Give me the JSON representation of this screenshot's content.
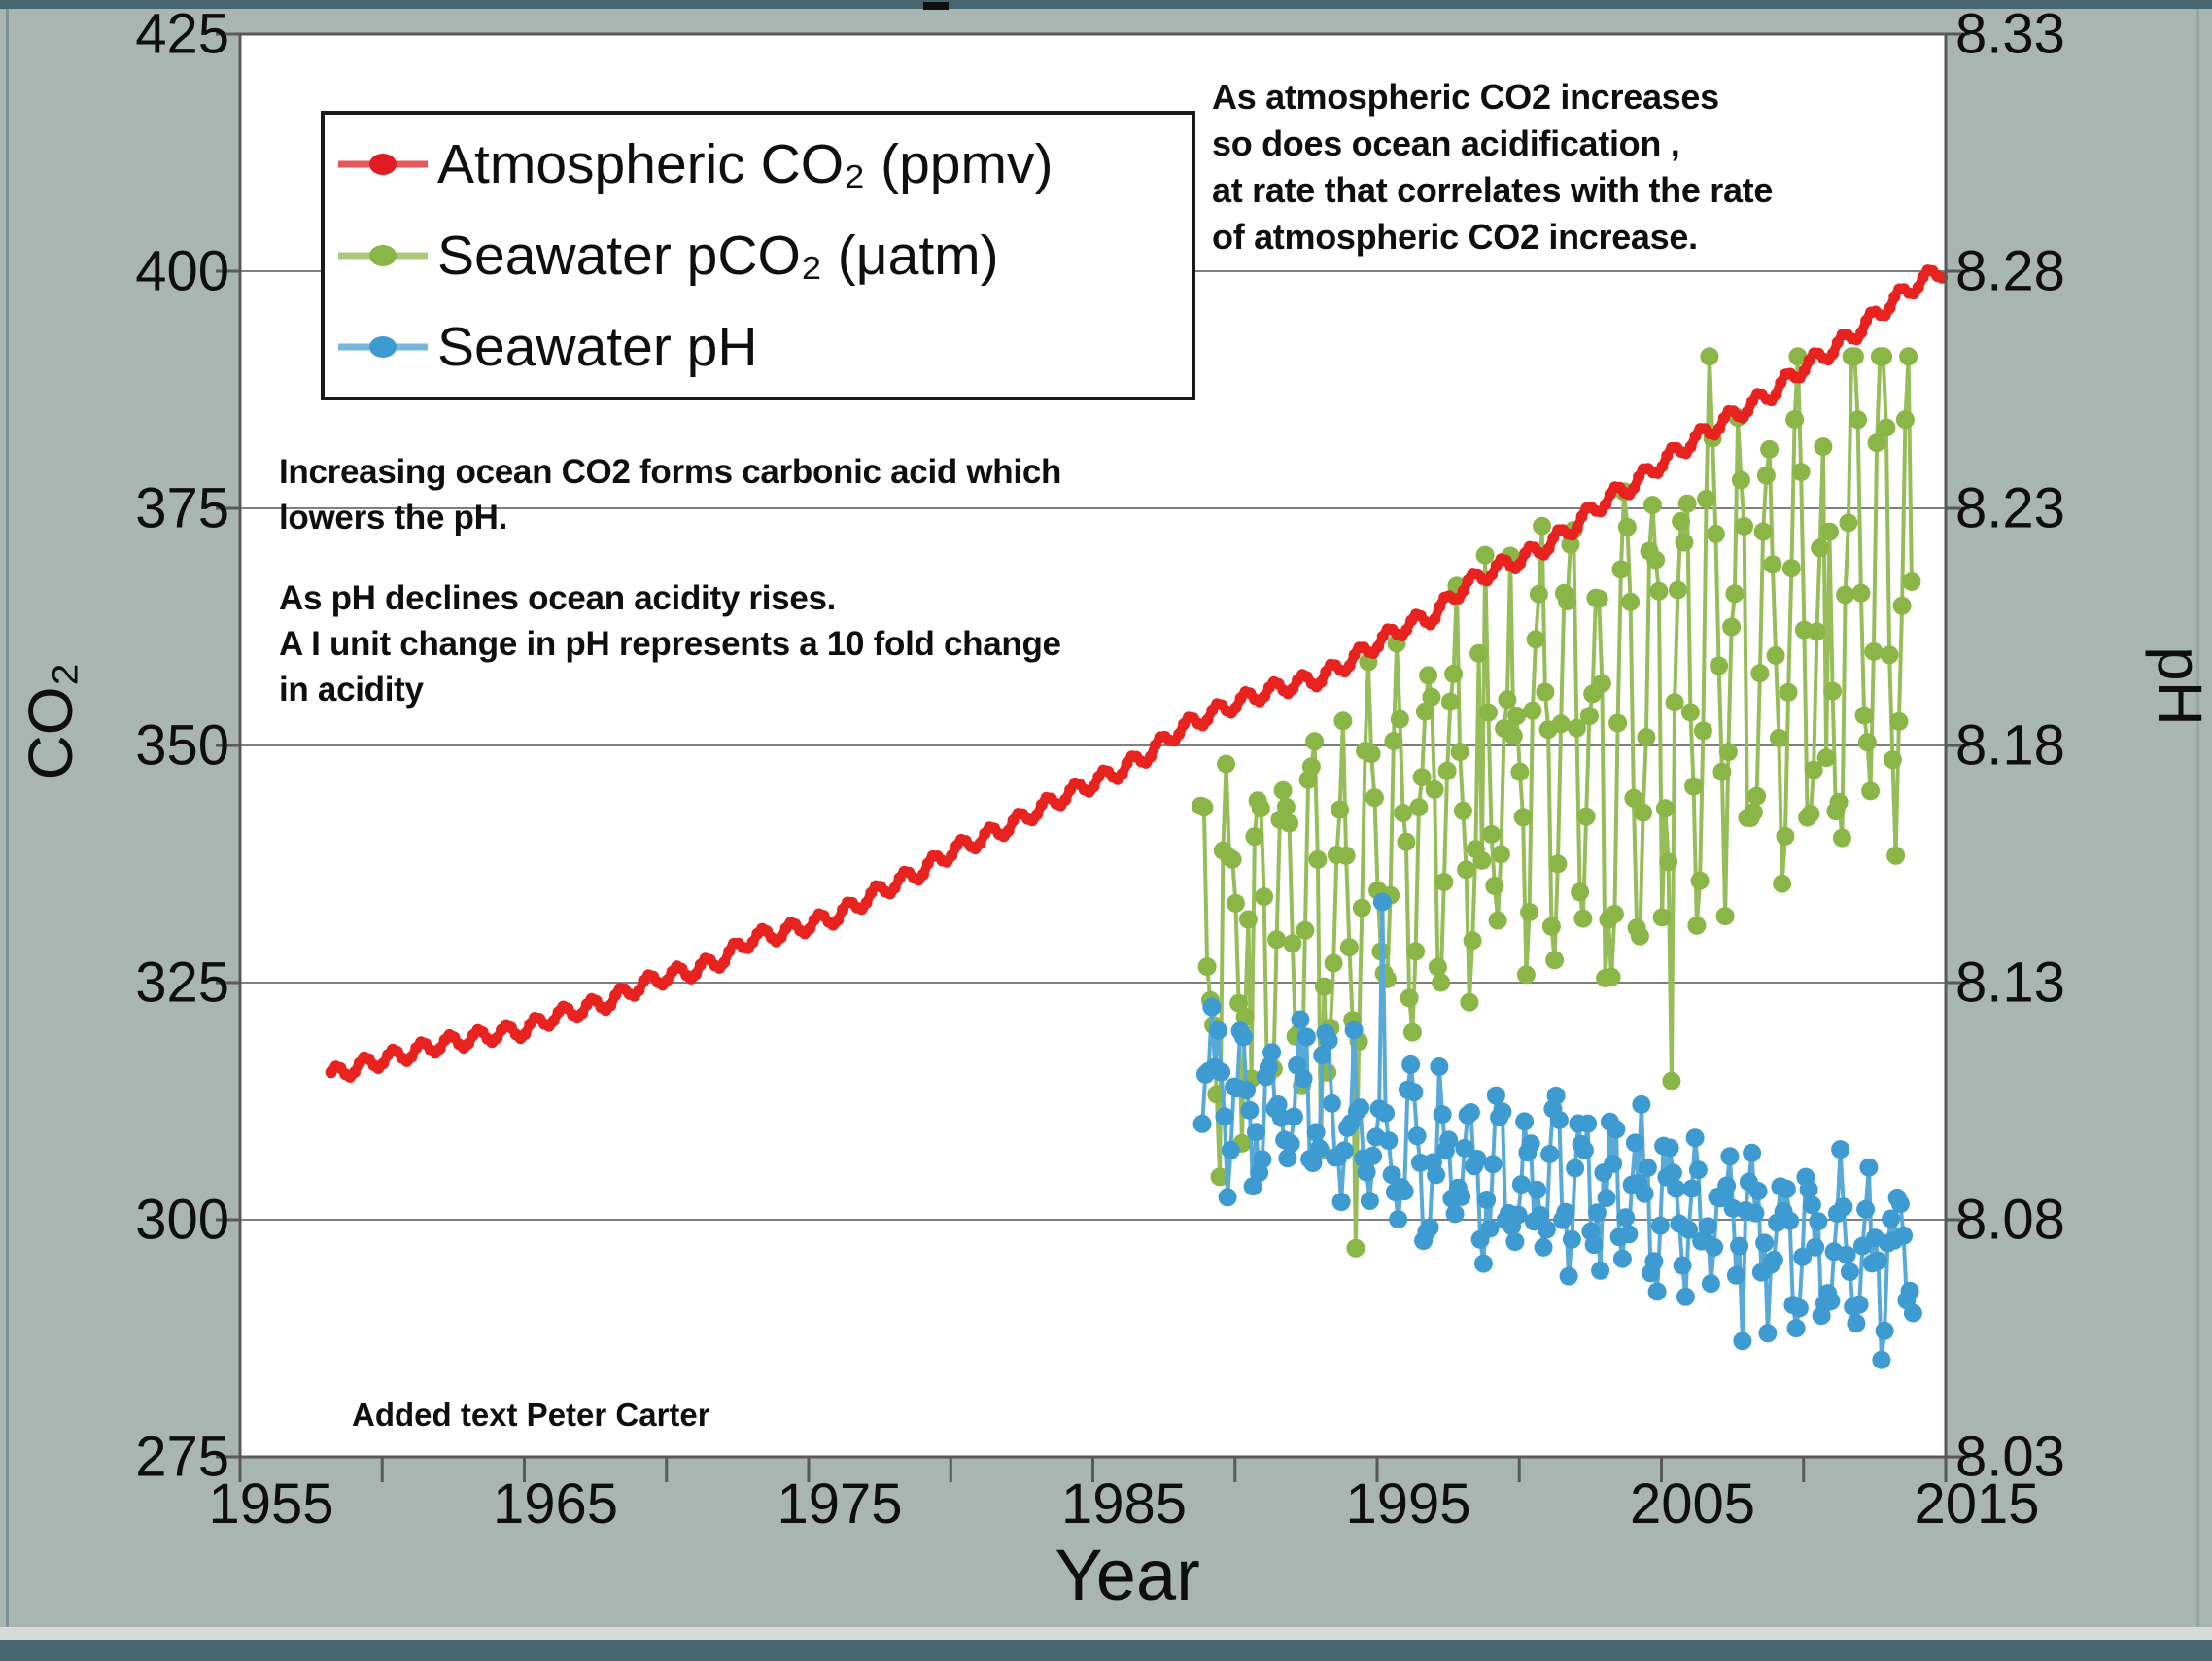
{
  "frame": {
    "background": "#a9b5b1",
    "band_color": "#46656f",
    "plot_background": "#ffffff",
    "grid_color": "#7f7f7f",
    "axis_color": "#595959",
    "text_color": "#0f0f0f"
  },
  "axes": {
    "x": {
      "label": "Year",
      "ticks": [
        1955,
        1965,
        1975,
        1985,
        1995,
        2005,
        2015
      ],
      "minor_tick_step": 5,
      "range": [
        1955,
        2015
      ]
    },
    "y_left": {
      "label": "CO₂",
      "ticks": [
        425,
        400,
        375,
        350,
        325,
        300,
        275
      ],
      "range": [
        275,
        425
      ]
    },
    "y_right": {
      "label": "pH",
      "ticks": [
        "8.33",
        "8.28",
        "8.23",
        "8.18",
        "8.13",
        "8.08",
        "8.03"
      ],
      "range": [
        8.03,
        8.33
      ]
    }
  },
  "legend": {
    "items": [
      {
        "label": "Atmospheric CO₂ (ppmv)",
        "dot_color": "#e01b22",
        "line_color": "#e8575b"
      },
      {
        "label": "Seawater pCO₂ (μatm)",
        "dot_color": "#89b646",
        "line_color": "#aec87e"
      },
      {
        "label": "Seawater pH",
        "dot_color": "#3d9bd1",
        "line_color": "#7ab7dc"
      }
    ]
  },
  "annotations": {
    "top_right": [
      "As atmospheric CO2 increases",
      "so does ocean acidification ,",
      "at rate that correlates with the rate",
      "of atmospheric CO2 increase."
    ],
    "mid_left_1": [
      "Increasing ocean CO2 forms carbonic acid  which",
      "lowers the  pH."
    ],
    "mid_left_2": [
      "As pH declines ocean acidity rises.",
      "A I unit change in pH represents a 10 fold change",
      "in acidity"
    ],
    "credit": "Added text   Peter Carter"
  },
  "chart_data": {
    "type": "line",
    "title": "",
    "xlabel": "Year",
    "ylabel_left": "CO₂",
    "ylabel_right": "pH",
    "x_range": [
      1955,
      2015
    ],
    "y_left_range": [
      275,
      425
    ],
    "y_right_range": [
      8.03,
      8.33
    ],
    "grid": "horizontal gridlines at left-axis ticks",
    "legend_position": "top-left",
    "series": [
      {
        "name": "Atmospheric CO₂ (ppmv)",
        "axis": "left",
        "color": "#e8221f",
        "style": "thick line with merged monthly markers",
        "annual_values": [
          [
            1958.2,
            315.2
          ],
          [
            1959,
            316.0
          ],
          [
            1960,
            316.9
          ],
          [
            1961,
            317.6
          ],
          [
            1962,
            318.5
          ],
          [
            1963,
            319.0
          ],
          [
            1964,
            319.6
          ],
          [
            1965,
            320.0
          ],
          [
            1966,
            321.4
          ],
          [
            1967,
            322.2
          ],
          [
            1968,
            323.0
          ],
          [
            1969,
            324.6
          ],
          [
            1970,
            325.7
          ],
          [
            1971,
            326.3
          ],
          [
            1972,
            327.5
          ],
          [
            1973,
            329.7
          ],
          [
            1974,
            330.2
          ],
          [
            1975,
            331.1
          ],
          [
            1976,
            332.0
          ],
          [
            1977,
            333.8
          ],
          [
            1978,
            335.4
          ],
          [
            1979,
            336.8
          ],
          [
            1980,
            338.8
          ],
          [
            1981,
            340.1
          ],
          [
            1982,
            341.4
          ],
          [
            1983,
            343.1
          ],
          [
            1984,
            344.7
          ],
          [
            1985,
            346.1
          ],
          [
            1986,
            347.4
          ],
          [
            1987,
            349.2
          ],
          [
            1988,
            351.6
          ],
          [
            1989,
            353.1
          ],
          [
            1990,
            354.4
          ],
          [
            1991,
            355.6
          ],
          [
            1992,
            356.4
          ],
          [
            1993,
            357.1
          ],
          [
            1994,
            358.8
          ],
          [
            1995,
            360.8
          ],
          [
            1996,
            362.6
          ],
          [
            1997,
            363.7
          ],
          [
            1998,
            366.7
          ],
          [
            1999,
            368.4
          ],
          [
            2000,
            369.6
          ],
          [
            2001,
            371.1
          ],
          [
            2002,
            373.3
          ],
          [
            2003,
            375.8
          ],
          [
            2004,
            377.5
          ],
          [
            2005,
            379.8
          ],
          [
            2006,
            381.9
          ],
          [
            2007,
            383.8
          ],
          [
            2008,
            385.6
          ],
          [
            2009,
            387.4
          ],
          [
            2010,
            389.9
          ],
          [
            2011,
            391.7
          ],
          [
            2012,
            393.9
          ],
          [
            2013,
            396.5
          ],
          [
            2014,
            398.7
          ],
          [
            2014.92,
            400.2
          ]
        ],
        "seasonal_amplitude": 0.8
      },
      {
        "name": "Seawater pCO₂ (μatm)",
        "axis": "left",
        "color": "#89b646",
        "line_color": "#96bd59",
        "style": "circle markers joined by thin line, strong seasonal oscillation",
        "span": [
          1988.8,
          2013.85
        ],
        "samples_per_year": 9,
        "trend": [
          [
            1988.8,
            328
          ],
          [
            1990,
            330
          ],
          [
            1992,
            332
          ],
          [
            1994,
            334
          ],
          [
            1996,
            340
          ],
          [
            1998,
            346
          ],
          [
            2000,
            350
          ],
          [
            2002,
            352
          ],
          [
            2004,
            353
          ],
          [
            2006,
            358
          ],
          [
            2008,
            361
          ],
          [
            2010,
            364
          ],
          [
            2012,
            367
          ],
          [
            2013.85,
            369
          ]
        ],
        "seasonal_amplitude": [
          15,
          25
        ],
        "noise": 7,
        "value_limits": [
          297,
          391
        ]
      },
      {
        "name": "Seawater pH",
        "axis": "right",
        "color": "#3d9bd1",
        "line_color": "#58a9d8",
        "style": "circle markers joined by thin line, declining trend",
        "span": [
          1988.85,
          2013.85
        ],
        "samples_per_year": 9,
        "trend": [
          [
            1988.85,
            8.108
          ],
          [
            1990,
            8.106
          ],
          [
            1992,
            8.103
          ],
          [
            1994,
            8.1
          ],
          [
            1996,
            8.094
          ],
          [
            1998,
            8.09
          ],
          [
            2000,
            8.088
          ],
          [
            2002,
            8.086
          ],
          [
            2004,
            8.085
          ],
          [
            2006,
            8.082
          ],
          [
            2008,
            8.078
          ],
          [
            2010,
            8.076
          ],
          [
            2012,
            8.073
          ],
          [
            2013.85,
            8.07
          ]
        ],
        "seasonal_amplitude": 0.013,
        "noise": 0.009,
        "value_limits": [
          8.042,
          8.147
        ]
      }
    ]
  }
}
